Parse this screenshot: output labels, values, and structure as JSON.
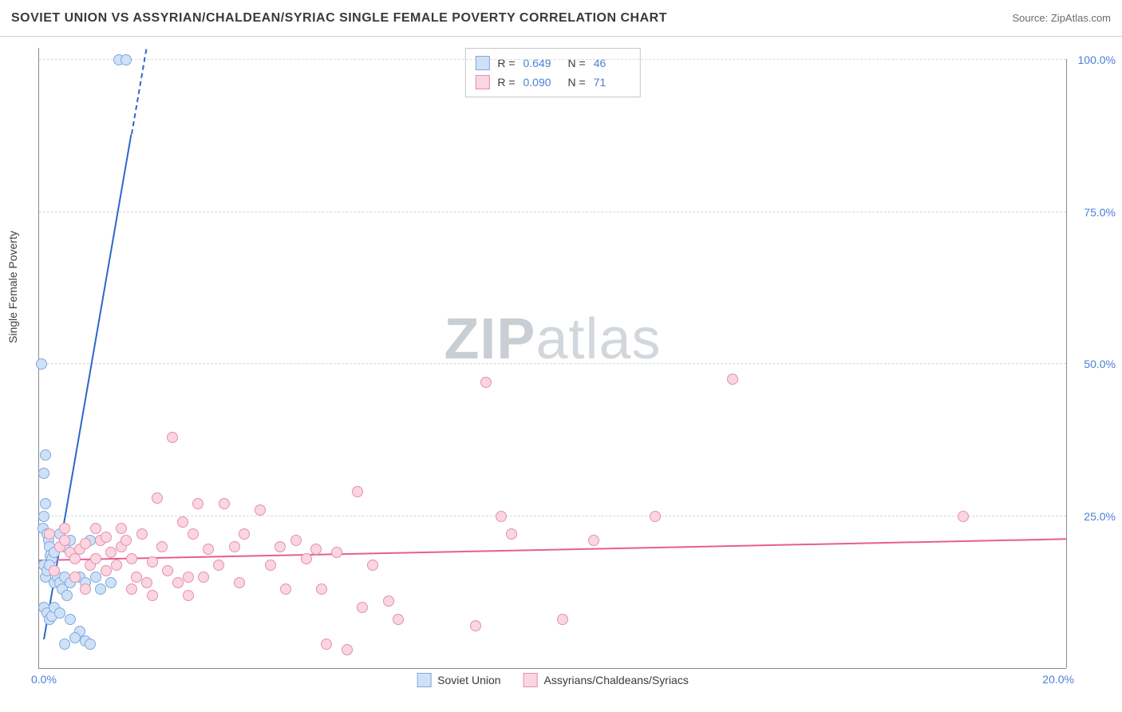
{
  "title": "SOVIET UNION VS ASSYRIAN/CHALDEAN/SYRIAC SINGLE FEMALE POVERTY CORRELATION CHART",
  "source_label": "Source: ZipAtlas.com",
  "watermark_a": "ZIP",
  "watermark_b": "atlas",
  "chart": {
    "type": "scatter",
    "ylabel": "Single Female Poverty",
    "xlim": [
      0.0,
      20.0
    ],
    "ylim": [
      0.0,
      102.0
    ],
    "xticks": [
      {
        "pos": 0.0,
        "label": "0.0%"
      },
      {
        "pos": 20.0,
        "label": "20.0%"
      }
    ],
    "yticks": [
      {
        "pos": 25.0,
        "label": "25.0%"
      },
      {
        "pos": 50.0,
        "label": "50.0%"
      },
      {
        "pos": 75.0,
        "label": "75.0%"
      },
      {
        "pos": 100.0,
        "label": "100.0%"
      }
    ],
    "grid_color": "#d8d8d8",
    "background_color": "#ffffff",
    "marker_radius": 7,
    "series": [
      {
        "name": "Soviet Union",
        "fill": "#cfe1f6",
        "stroke": "#7fa8e0",
        "trend_color": "#2c67c9",
        "R": "0.649",
        "N": "46",
        "trend": {
          "x1": 0.1,
          "y1": 5.0,
          "x2": 1.8,
          "y2": 88.0,
          "dash_to_y": 102.0
        },
        "points": [
          [
            0.05,
            50.0
          ],
          [
            0.1,
            32.0
          ],
          [
            0.12,
            35.0
          ],
          [
            0.08,
            23.0
          ],
          [
            0.1,
            25.0
          ],
          [
            0.15,
            22.0
          ],
          [
            0.18,
            21.0
          ],
          [
            0.2,
            20.0
          ],
          [
            0.22,
            18.5
          ],
          [
            0.25,
            18.0
          ],
          [
            0.1,
            17.0
          ],
          [
            0.12,
            15.0
          ],
          [
            0.15,
            16.0
          ],
          [
            0.2,
            17.0
          ],
          [
            0.3,
            14.0
          ],
          [
            0.35,
            15.0
          ],
          [
            0.4,
            14.0
          ],
          [
            0.45,
            13.0
          ],
          [
            0.5,
            15.0
          ],
          [
            0.55,
            12.0
          ],
          [
            0.6,
            14.0
          ],
          [
            0.8,
            15.0
          ],
          [
            0.9,
            14.0
          ],
          [
            1.0,
            21.0
          ],
          [
            1.1,
            15.0
          ],
          [
            1.2,
            13.0
          ],
          [
            1.4,
            14.0
          ],
          [
            0.1,
            10.0
          ],
          [
            0.15,
            9.0
          ],
          [
            0.2,
            8.0
          ],
          [
            0.25,
            8.5
          ],
          [
            0.3,
            10.0
          ],
          [
            0.4,
            9.0
          ],
          [
            0.6,
            8.0
          ],
          [
            0.8,
            6.0
          ],
          [
            0.9,
            4.5
          ],
          [
            1.0,
            4.0
          ],
          [
            0.5,
            4.0
          ],
          [
            0.7,
            5.0
          ],
          [
            1.55,
            100.0
          ],
          [
            1.7,
            100.0
          ],
          [
            0.4,
            22.0
          ],
          [
            0.5,
            20.0
          ],
          [
            0.6,
            21.0
          ],
          [
            0.3,
            19.0
          ],
          [
            0.12,
            27.0
          ]
        ]
      },
      {
        "name": "Assyrians/Chaldeans/Syriacs",
        "fill": "#f9d6e0",
        "stroke": "#e78fab",
        "trend_color": "#e65f8e",
        "R": "0.090",
        "N": "71",
        "trend": {
          "x1": 0.0,
          "y1": 18.0,
          "x2": 20.0,
          "y2": 21.5
        },
        "points": [
          [
            0.2,
            22.0
          ],
          [
            0.4,
            20.0
          ],
          [
            0.5,
            21.0
          ],
          [
            0.6,
            19.0
          ],
          [
            0.7,
            18.0
          ],
          [
            0.8,
            19.5
          ],
          [
            0.9,
            20.5
          ],
          [
            1.0,
            17.0
          ],
          [
            1.1,
            18.0
          ],
          [
            1.2,
            21.0
          ],
          [
            1.3,
            21.5
          ],
          [
            1.4,
            19.0
          ],
          [
            1.5,
            17.0
          ],
          [
            1.6,
            20.0
          ],
          [
            1.7,
            21.0
          ],
          [
            1.8,
            18.0
          ],
          [
            1.9,
            15.0
          ],
          [
            2.0,
            22.0
          ],
          [
            2.1,
            14.0
          ],
          [
            2.2,
            12.0
          ],
          [
            2.3,
            28.0
          ],
          [
            2.5,
            16.0
          ],
          [
            2.7,
            14.0
          ],
          [
            2.8,
            24.0
          ],
          [
            2.9,
            12.0
          ],
          [
            3.0,
            22.0
          ],
          [
            3.1,
            27.0
          ],
          [
            3.3,
            19.5
          ],
          [
            3.5,
            17.0
          ],
          [
            3.6,
            27.0
          ],
          [
            3.8,
            20.0
          ],
          [
            3.9,
            14.0
          ],
          [
            4.0,
            22.0
          ],
          [
            4.3,
            26.0
          ],
          [
            4.5,
            17.0
          ],
          [
            4.7,
            20.0
          ],
          [
            4.8,
            13.0
          ],
          [
            5.0,
            21.0
          ],
          [
            5.2,
            18.0
          ],
          [
            5.4,
            19.5
          ],
          [
            5.5,
            13.0
          ],
          [
            5.6,
            4.0
          ],
          [
            5.8,
            19.0
          ],
          [
            6.0,
            3.0
          ],
          [
            6.2,
            29.0
          ],
          [
            6.3,
            10.0
          ],
          [
            6.5,
            17.0
          ],
          [
            6.8,
            11.0
          ],
          [
            7.0,
            8.0
          ],
          [
            8.7,
            47.0
          ],
          [
            8.5,
            7.0
          ],
          [
            9.0,
            25.0
          ],
          [
            9.2,
            22.0
          ],
          [
            10.2,
            8.0
          ],
          [
            10.8,
            21.0
          ],
          [
            12.0,
            25.0
          ],
          [
            13.5,
            47.5
          ],
          [
            18.0,
            25.0
          ],
          [
            2.6,
            38.0
          ],
          [
            0.3,
            16.0
          ],
          [
            0.5,
            23.0
          ],
          [
            0.7,
            15.0
          ],
          [
            0.9,
            13.0
          ],
          [
            1.1,
            23.0
          ],
          [
            1.3,
            16.0
          ],
          [
            1.6,
            23.0
          ],
          [
            1.8,
            13.0
          ],
          [
            2.2,
            17.5
          ],
          [
            2.4,
            20.0
          ],
          [
            2.9,
            15.0
          ],
          [
            3.2,
            15.0
          ]
        ]
      }
    ],
    "legend_bottom": [
      {
        "label": "Soviet Union",
        "fill": "#cfe1f6",
        "stroke": "#7fa8e0"
      },
      {
        "label": "Assyrians/Chaldeans/Syriacs",
        "fill": "#f9d6e0",
        "stroke": "#e78fab"
      }
    ]
  }
}
